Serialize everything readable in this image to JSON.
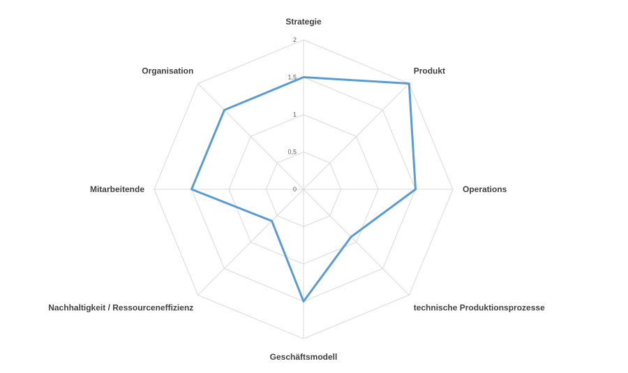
{
  "chart_data": {
    "type": "radar",
    "categories": [
      "Strategie",
      "Produkt",
      "Operations",
      "technische Produktionsprozesse",
      "Geschäftsmodell",
      "Nachhaltigkeit / Ressourceneffizienz",
      "Mitarbeitende",
      "Organisation"
    ],
    "series": [
      {
        "values": [
          1.5,
          2.0,
          1.5,
          0.9,
          1.5,
          0.6,
          1.5,
          1.5
        ]
      }
    ],
    "ticks": [
      "0",
      "0,5",
      "1",
      "1,5",
      "2"
    ],
    "rlim": [
      0,
      2
    ],
    "colors": {
      "series": "#5b9bd5",
      "grid": "#d9d9d9"
    }
  }
}
